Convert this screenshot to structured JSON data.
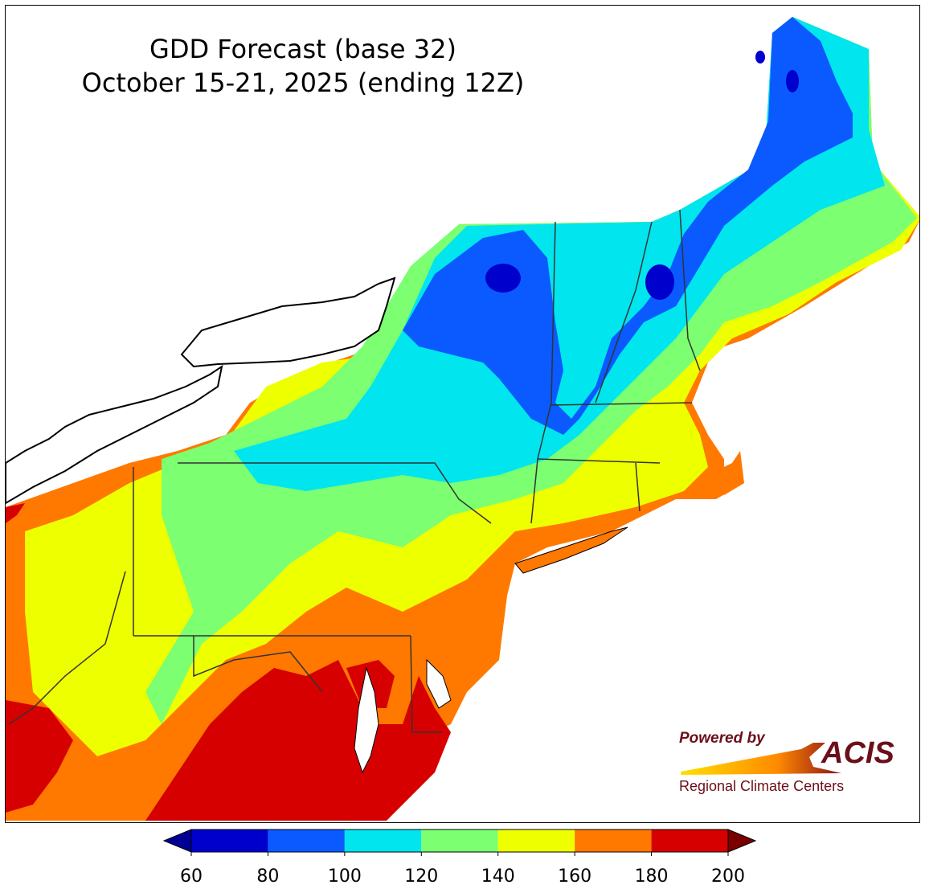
{
  "title": {
    "line1": "GDD Forecast (base 32)",
    "line2": "October 15-21, 2025 (ending 12Z)"
  },
  "logo": {
    "powered_by": "Powered by",
    "brand": "ACIS",
    "subtitle": "Regional Climate Centers"
  },
  "colorbar": {
    "ticks": [
      "60",
      "80",
      "100",
      "120",
      "140",
      "160",
      "180",
      "200"
    ],
    "bins": [
      {
        "min": 60,
        "max": 80,
        "color": "#0000cd"
      },
      {
        "min": 80,
        "max": 100,
        "color": "#0a5aff"
      },
      {
        "min": 100,
        "max": 120,
        "color": "#00e5ee"
      },
      {
        "min": 120,
        "max": 140,
        "color": "#7cff70"
      },
      {
        "min": 140,
        "max": 160,
        "color": "#eeff00"
      },
      {
        "min": 160,
        "max": 180,
        "color": "#ff7800"
      },
      {
        "min": 180,
        "max": 200,
        "color": "#d70000"
      }
    ],
    "under_color": "#000096",
    "over_color": "#7a0000"
  }
}
